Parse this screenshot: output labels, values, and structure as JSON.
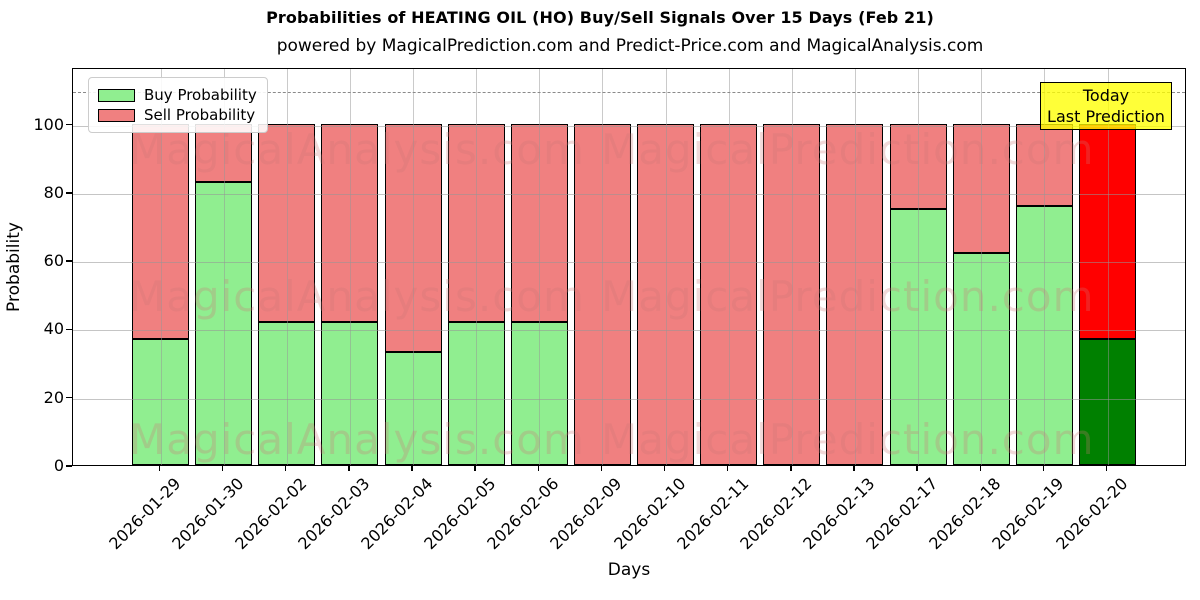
{
  "title": "Probabilities of HEATING OIL (HO) Buy/Sell Signals Over 15 Days (Feb 21)",
  "subtitle": "powered by MagicalPrediction.com and Predict-Price.com and MagicalAnalysis.com",
  "legend": {
    "buy_label": "Buy Probability",
    "sell_label": "Sell Probability"
  },
  "annotation": {
    "line1": "Today",
    "line2": "Last Prediction"
  },
  "axes": {
    "ylabel": "Probability",
    "xlabel": "Days",
    "yticks": [
      0,
      20,
      40,
      60,
      80,
      100
    ]
  },
  "watermarks": [
    "MagicalAnalysis.com",
    "MagicalPrediction.com"
  ],
  "colors": {
    "buy": "#90ee90",
    "sell": "#f08080",
    "today_buy": "#008000",
    "today_sell": "#ff0000",
    "annotation_bg": "#ffff00",
    "grid": "#b0b0b0",
    "dashed_line": "#8a8a8a"
  },
  "chart_data": {
    "type": "bar",
    "stacked": true,
    "title": "Probabilities of HEATING OIL (HO) Buy/Sell Signals Over 15 Days (Feb 21)",
    "xlabel": "Days",
    "ylabel": "Probability",
    "ylim": [
      0,
      116.6
    ],
    "grid": true,
    "legend_position": "upper left",
    "dashed_line_y": 110,
    "categories": [
      "2026-01-29",
      "2026-01-30",
      "2026-02-02",
      "2026-02-03",
      "2026-02-04",
      "2026-02-05",
      "2026-02-06",
      "2026-02-09",
      "2026-02-10",
      "2026-02-11",
      "2026-02-12",
      "2026-02-13",
      "2026-02-17",
      "2026-02-18",
      "2026-02-19",
      "2026-02-20"
    ],
    "series": [
      {
        "name": "Buy Probability",
        "values": [
          37,
          83,
          42,
          42,
          33,
          42,
          42,
          0,
          0,
          0,
          0,
          0,
          75,
          62,
          76,
          37
        ]
      },
      {
        "name": "Sell Probability",
        "values": [
          63,
          17,
          58,
          58,
          67,
          58,
          58,
          100,
          100,
          100,
          100,
          100,
          25,
          38,
          24,
          63
        ]
      }
    ],
    "today_index": 15,
    "today_label": "Today / Last Prediction"
  }
}
